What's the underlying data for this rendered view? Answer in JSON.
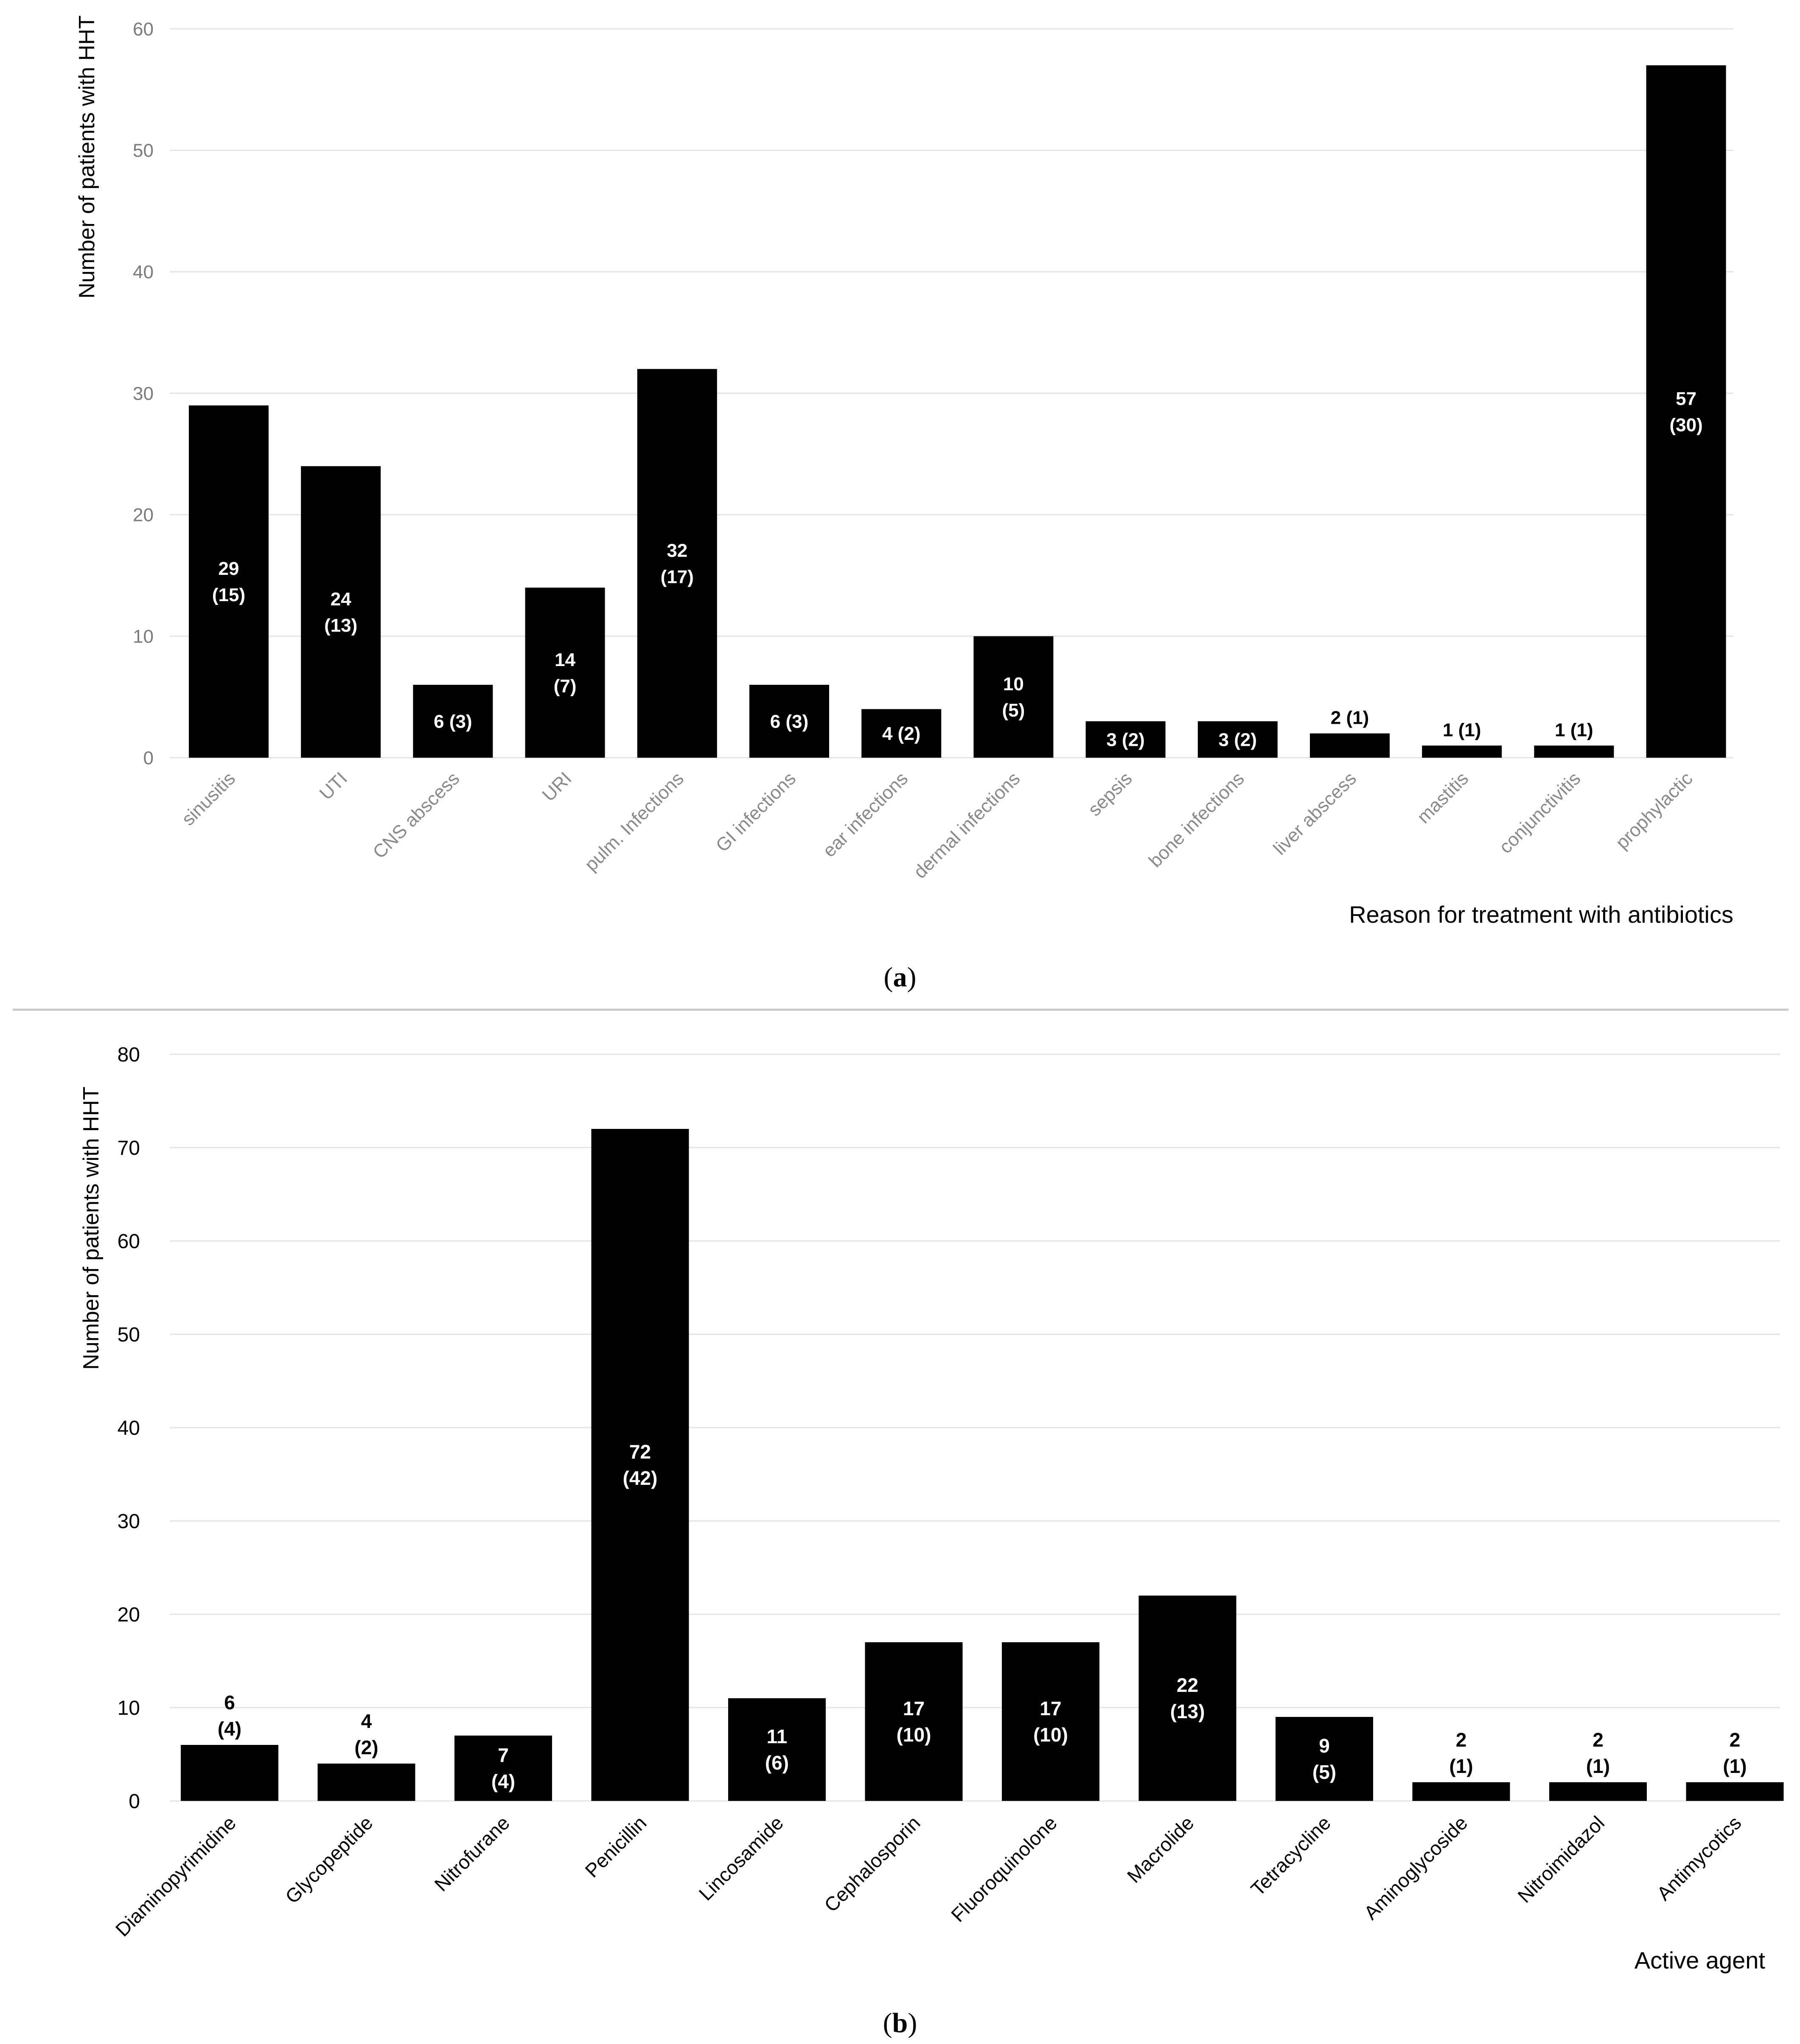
{
  "panels": [
    {
      "id": "a",
      "label_open": "(",
      "letter": "a",
      "label_close": ")"
    },
    {
      "id": "b",
      "label_open": "(",
      "letter": "b",
      "label_close": ")"
    }
  ],
  "chart_data": [
    {
      "type": "bar",
      "title": "",
      "ylabel": "Number of patients with HHT",
      "xlabel": "Reason for treatment with antibiotics",
      "ylim": [
        0,
        60
      ],
      "yticks": [
        0,
        10,
        20,
        30,
        40,
        50,
        60
      ],
      "grid": true,
      "categories": [
        "sinusitis",
        "UTI",
        "CNS abscess",
        "URI",
        "pulm. Infections",
        "GI infections",
        "ear infections",
        "dermal infections",
        "sepsis",
        "bone infections",
        "liver abscess",
        "mastitis",
        "conjunctivitis",
        "prophylactic"
      ],
      "values": [
        29,
        24,
        6,
        14,
        32,
        6,
        4,
        10,
        3,
        3,
        2,
        1,
        1,
        57
      ],
      "values_in_parentheses": [
        15,
        13,
        3,
        7,
        17,
        3,
        2,
        5,
        2,
        2,
        1,
        1,
        1,
        30
      ],
      "bar_color": "#000000",
      "data_labels": [
        [
          "29",
          "(15)"
        ],
        [
          "24",
          "(13)"
        ],
        [
          "6 (3)"
        ],
        [
          "14",
          "(7)"
        ],
        [
          "32",
          "(17)"
        ],
        [
          "6 (3)"
        ],
        [
          "4 (2)"
        ],
        [
          "10",
          "(5)"
        ],
        [
          "3 (2)"
        ],
        [
          "3 (2)"
        ],
        [
          "2 (1)"
        ],
        [
          "1 (1)"
        ],
        [
          "1 (1)"
        ],
        [
          "57",
          "(30)"
        ]
      ]
    },
    {
      "type": "bar",
      "title": "",
      "ylabel": "Number of patients with HHT",
      "xlabel": "Active agent",
      "ylim": [
        0,
        80
      ],
      "yticks": [
        0,
        10,
        20,
        30,
        40,
        50,
        60,
        70,
        80
      ],
      "grid": true,
      "categories": [
        "Diaminopyrimidine",
        "Glycopeptide",
        "Nitrofurane",
        "Penicillin",
        "Lincosamide",
        "Cephalosporin",
        "Fluoroquinolone",
        "Macrolide",
        "Tetracycline",
        "Aminoglycoside",
        "Nitroimidazol",
        "Antimycotics"
      ],
      "values": [
        6,
        4,
        7,
        72,
        11,
        17,
        17,
        22,
        9,
        2,
        2,
        2
      ],
      "values_in_parentheses": [
        4,
        2,
        4,
        42,
        6,
        10,
        10,
        13,
        5,
        1,
        1,
        1
      ],
      "bar_color": "#000000",
      "data_labels": [
        [
          "6",
          "(4)"
        ],
        [
          "4",
          "(2)"
        ],
        [
          "7",
          "(4)"
        ],
        [
          "72",
          "(42)"
        ],
        [
          "11",
          "(6)"
        ],
        [
          "17",
          "(10)"
        ],
        [
          "17",
          "(10)"
        ],
        [
          "22",
          "(13)"
        ],
        [
          "9",
          "(5)"
        ],
        [
          "2",
          "(1)"
        ],
        [
          "2",
          "(1)"
        ],
        [
          "2",
          "(1)"
        ]
      ]
    }
  ]
}
